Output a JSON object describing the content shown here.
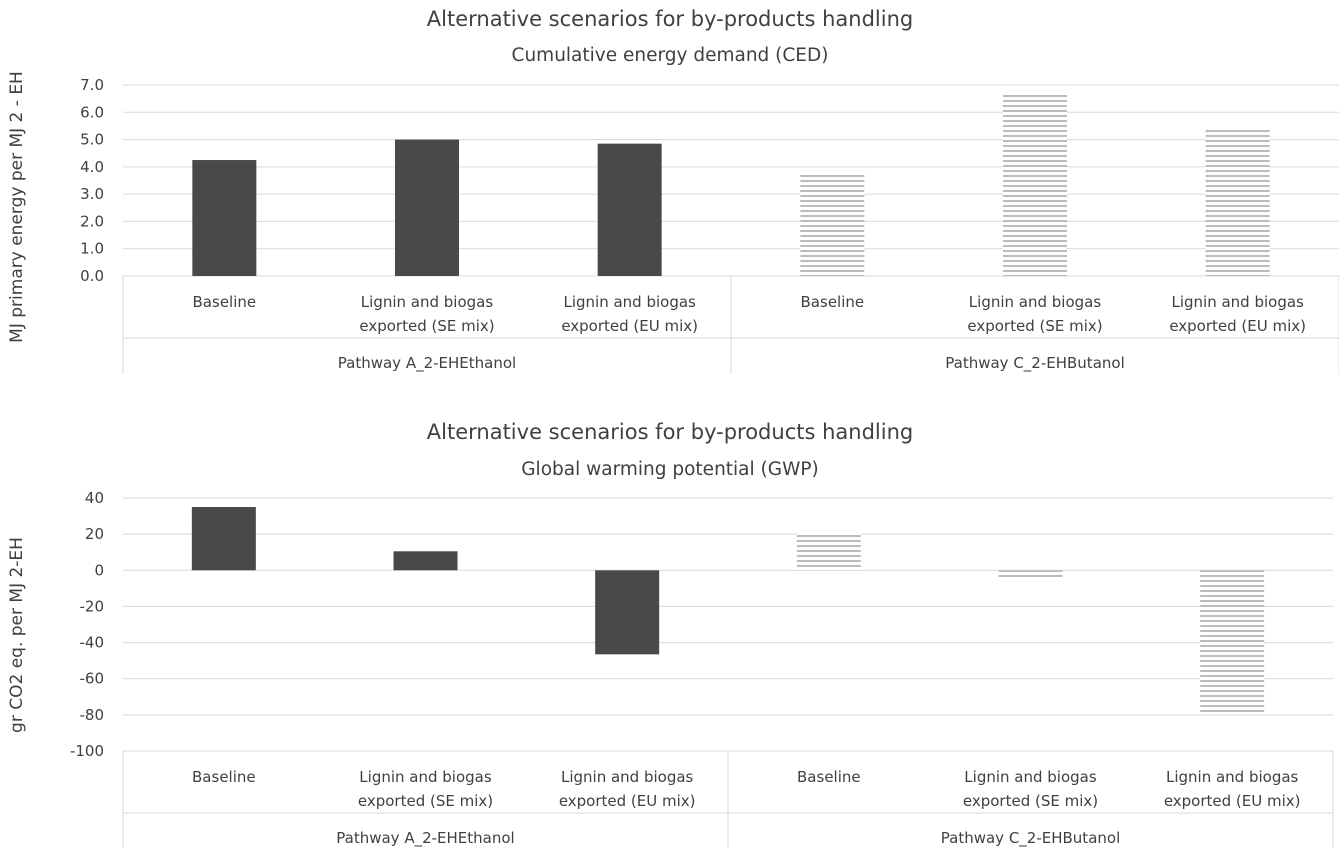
{
  "colors": {
    "pathway_a_fill": "#49494b",
    "pathway_c_fill": "#b9bcbf",
    "gridline": "#d9d9d9",
    "text": "#404040"
  },
  "chart_data": [
    {
      "type": "bar",
      "title": "Alternative scenarios for by-products handling",
      "subtitle": "Cumulative energy demand (CED)",
      "ylabel": "MJ primary energy  per MJ 2 - EH",
      "ylim": [
        0,
        7
      ],
      "yticks": [
        "7.0",
        "6.0",
        "5.0",
        "4.0",
        "3.0",
        "2.0",
        "1.0",
        "0.0"
      ],
      "grid": true,
      "categories": [
        "Baseline",
        "Lignin and biogas exported (SE mix)",
        "Lignin and biogas exported (EU mix)",
        "Baseline",
        "Lignin and biogas exported (SE mix)",
        "Lignin and biogas exported (EU mix)"
      ],
      "category_lines": [
        [
          "Baseline"
        ],
        [
          "Lignin and biogas",
          "exported (SE mix)"
        ],
        [
          "Lignin and biogas",
          "exported (EU mix)"
        ],
        [
          "Baseline"
        ],
        [
          "Lignin and biogas",
          "exported (SE mix)"
        ],
        [
          "Lignin and biogas",
          "exported (EU mix)"
        ]
      ],
      "groups": [
        "Pathway A_2-EHEthanol",
        "Pathway C_2-EHButanol"
      ],
      "values": [
        4.25,
        5.0,
        4.85,
        3.78,
        6.65,
        5.42
      ],
      "patterns": [
        "solid",
        "solid",
        "solid",
        "striped",
        "striped",
        "striped"
      ]
    },
    {
      "type": "bar",
      "title": "Alternative scenarios for by-products handling",
      "subtitle": "Global warming potential (GWP)",
      "ylabel": "gr CO2 eq. per MJ 2-EH",
      "ylim": [
        -100,
        40
      ],
      "yticks": [
        "40",
        "20",
        "0",
        "-20",
        "-40",
        "-60",
        "-80",
        "-100"
      ],
      "grid": true,
      "categories": [
        "Baseline",
        "Lignin and biogas exported (SE mix)",
        "Lignin and biogas exported (EU mix)",
        "Baseline",
        "Lignin and biogas exported (SE mix)",
        "Lignin and biogas exported (EU mix)"
      ],
      "category_lines": [
        [
          "Baseline"
        ],
        [
          "Lignin and biogas",
          "exported (SE mix)"
        ],
        [
          "Lignin and biogas",
          "exported (EU mix)"
        ],
        [
          "Baseline"
        ],
        [
          "Lignin and biogas",
          "exported (SE mix)"
        ],
        [
          "Lignin and biogas",
          "exported (EU mix)"
        ]
      ],
      "groups": [
        "Pathway A_2-EHEthanol",
        "Pathway C_2-EHButanol"
      ],
      "values": [
        35,
        10.5,
        -46.5,
        21,
        -5,
        -78.5
      ],
      "patterns": [
        "solid",
        "solid",
        "solid",
        "striped",
        "striped",
        "striped"
      ]
    }
  ]
}
